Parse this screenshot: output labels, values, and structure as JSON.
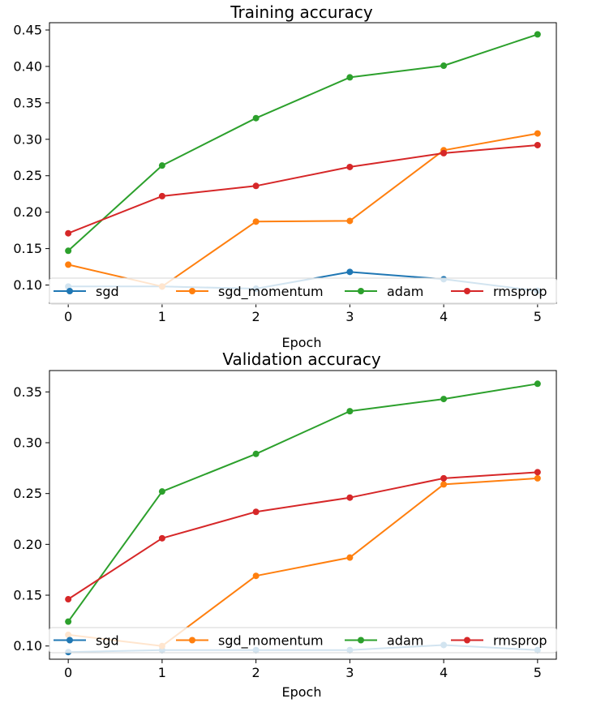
{
  "chart_data": [
    {
      "type": "line",
      "title": "Training accuracy",
      "xlabel": "Epoch",
      "ylabel": "",
      "x": [
        0,
        1,
        2,
        3,
        4,
        5
      ],
      "xlim": [
        -0.2,
        5.2
      ],
      "ylim": [
        0.075,
        0.46
      ],
      "yticks": [
        0.1,
        0.15,
        0.2,
        0.25,
        0.3,
        0.35,
        0.4,
        0.45
      ],
      "ytick_labels": [
        "0.10",
        "0.15",
        "0.20",
        "0.25",
        "0.30",
        "0.35",
        "0.40",
        "0.45"
      ],
      "xticks": [
        0,
        1,
        2,
        3,
        4,
        5
      ],
      "xtick_labels": [
        "0",
        "1",
        "2",
        "3",
        "4",
        "5"
      ],
      "grid": false,
      "legend_position": "lower center",
      "series": [
        {
          "name": "sgd",
          "color": "#1f77b4",
          "values": [
            0.098,
            0.098,
            0.095,
            0.118,
            0.108,
            0.092
          ]
        },
        {
          "name": "sgd_momentum",
          "color": "#ff7f0e",
          "values": [
            0.128,
            0.098,
            0.187,
            0.188,
            0.285,
            0.308
          ]
        },
        {
          "name": "adam",
          "color": "#2ca02c",
          "values": [
            0.147,
            0.264,
            0.329,
            0.385,
            0.401,
            0.444
          ]
        },
        {
          "name": "rmsprop",
          "color": "#d62728",
          "values": [
            0.171,
            0.222,
            0.236,
            0.262,
            0.281,
            0.292
          ]
        }
      ]
    },
    {
      "type": "line",
      "title": "Validation accuracy",
      "xlabel": "Epoch",
      "ylabel": "",
      "x": [
        0,
        1,
        2,
        3,
        4,
        5
      ],
      "xlim": [
        -0.2,
        5.2
      ],
      "ylim": [
        0.087,
        0.371
      ],
      "yticks": [
        0.1,
        0.15,
        0.2,
        0.25,
        0.3,
        0.35
      ],
      "ytick_labels": [
        "0.10",
        "0.15",
        "0.20",
        "0.25",
        "0.30",
        "0.35"
      ],
      "xticks": [
        0,
        1,
        2,
        3,
        4,
        5
      ],
      "xtick_labels": [
        "0",
        "1",
        "2",
        "3",
        "4",
        "5"
      ],
      "grid": false,
      "legend_position": "lower center",
      "series": [
        {
          "name": "sgd",
          "color": "#1f77b4",
          "values": [
            0.094,
            0.096,
            0.096,
            0.096,
            0.101,
            0.096
          ]
        },
        {
          "name": "sgd_momentum",
          "color": "#ff7f0e",
          "values": [
            0.111,
            0.1,
            0.169,
            0.187,
            0.259,
            0.265
          ]
        },
        {
          "name": "adam",
          "color": "#2ca02c",
          "values": [
            0.124,
            0.252,
            0.289,
            0.331,
            0.343,
            0.358
          ]
        },
        {
          "name": "rmsprop",
          "color": "#d62728",
          "values": [
            0.146,
            0.206,
            0.232,
            0.246,
            0.265,
            0.271
          ]
        }
      ]
    }
  ]
}
